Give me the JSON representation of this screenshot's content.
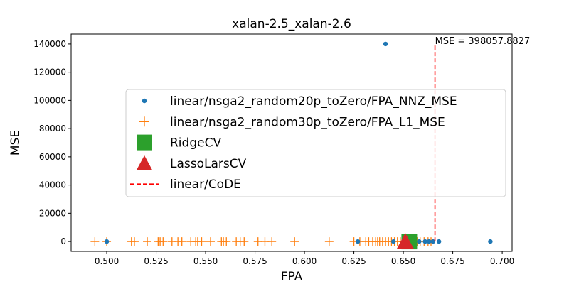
{
  "chart_data": {
    "type": "scatter",
    "title": "xalan-2.5_xalan-2.6",
    "xlabel": "FPA",
    "ylabel": "MSE",
    "xlim": [
      0.482,
      0.705
    ],
    "ylim": [
      -7000,
      147000
    ],
    "xticks": [
      0.5,
      0.525,
      0.55,
      0.575,
      0.6,
      0.625,
      0.65,
      0.675,
      0.7
    ],
    "xtick_labels": [
      "0.500",
      "0.525",
      "0.550",
      "0.575",
      "0.600",
      "0.625",
      "0.650",
      "0.675",
      "0.700"
    ],
    "yticks": [
      0,
      20000,
      40000,
      60000,
      80000,
      100000,
      120000,
      140000
    ],
    "ytick_labels": [
      "0",
      "20000",
      "40000",
      "60000",
      "80000",
      "100000",
      "120000",
      "140000"
    ],
    "grid": false,
    "legend_position": "center-right",
    "series": [
      {
        "name": "linear/nsga2_random20p_toZero/FPA_NNZ_MSE",
        "marker": "circle",
        "color": "#1f77b4",
        "points": [
          [
            0.5,
            0
          ],
          [
            0.627,
            0
          ],
          [
            0.641,
            140000
          ],
          [
            0.645,
            0
          ],
          [
            0.65,
            0
          ],
          [
            0.652,
            0
          ],
          [
            0.655,
            0
          ],
          [
            0.658,
            0
          ],
          [
            0.661,
            0
          ],
          [
            0.663,
            0
          ],
          [
            0.665,
            0
          ],
          [
            0.668,
            0
          ],
          [
            0.694,
            0
          ]
        ]
      },
      {
        "name": "linear/nsga2_random30p_toZero/FPA_L1_MSE",
        "marker": "plus",
        "color": "#ff7f0e",
        "points": [
          [
            0.494,
            0
          ],
          [
            0.5,
            0
          ],
          [
            0.5125,
            0
          ],
          [
            0.514,
            0
          ],
          [
            0.5205,
            0
          ],
          [
            0.526,
            0
          ],
          [
            0.527,
            0
          ],
          [
            0.5285,
            0
          ],
          [
            0.533,
            0
          ],
          [
            0.536,
            0
          ],
          [
            0.538,
            0
          ],
          [
            0.5425,
            0
          ],
          [
            0.545,
            0
          ],
          [
            0.546,
            0
          ],
          [
            0.548,
            0
          ],
          [
            0.5525,
            0
          ],
          [
            0.558,
            0
          ],
          [
            0.559,
            0
          ],
          [
            0.5605,
            0
          ],
          [
            0.5655,
            0
          ],
          [
            0.5675,
            0
          ],
          [
            0.5695,
            0
          ],
          [
            0.5765,
            0
          ],
          [
            0.58,
            0
          ],
          [
            0.5835,
            0
          ],
          [
            0.595,
            0
          ],
          [
            0.6125,
            0
          ],
          [
            0.625,
            0
          ],
          [
            0.628,
            0
          ],
          [
            0.631,
            0
          ],
          [
            0.6325,
            0
          ],
          [
            0.6345,
            0
          ],
          [
            0.636,
            0
          ],
          [
            0.637,
            0
          ],
          [
            0.638,
            0
          ],
          [
            0.6395,
            0
          ],
          [
            0.641,
            0
          ],
          [
            0.6425,
            0
          ],
          [
            0.644,
            0
          ],
          [
            0.6455,
            0
          ],
          [
            0.647,
            0
          ],
          [
            0.6485,
            0
          ],
          [
            0.65,
            0
          ],
          [
            0.6515,
            0
          ],
          [
            0.6535,
            0
          ],
          [
            0.6555,
            0
          ],
          [
            0.657,
            0
          ],
          [
            0.6585,
            0
          ],
          [
            0.6605,
            0
          ],
          [
            0.6625,
            0
          ],
          [
            0.664,
            0
          ]
        ]
      },
      {
        "name": "RidgeCV",
        "marker": "square",
        "color": "#2ca02c",
        "points": [
          [
            0.653,
            0
          ]
        ]
      },
      {
        "name": "LassoLarsCV",
        "marker": "triangle",
        "color": "#d62728",
        "points": [
          [
            0.651,
            0
          ]
        ]
      }
    ],
    "reference_line": {
      "name": "linear/CoDE",
      "style": "dashed",
      "color": "#ff0000",
      "x": 0.666,
      "y_from": 0,
      "y_to": 140000
    },
    "annotation": {
      "text": "MSE = 398057.8827",
      "x": 0.666,
      "y": 140000
    }
  }
}
